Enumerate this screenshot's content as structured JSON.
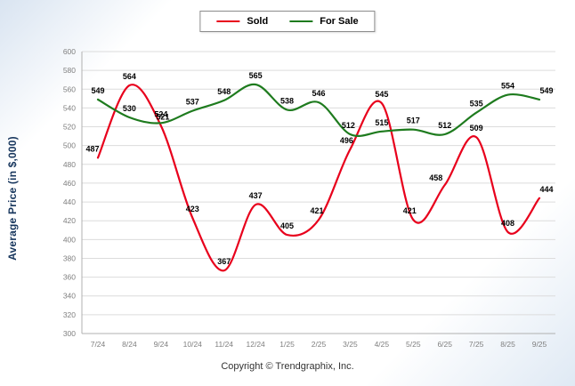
{
  "footer": {
    "copyright": "Copyright © Trendgraphix, Inc."
  },
  "chart_data": {
    "type": "line",
    "title": "",
    "categories": [
      "7/24",
      "8/24",
      "9/24",
      "10/24",
      "11/24",
      "12/24",
      "1/25",
      "2/25",
      "3/25",
      "4/25",
      "5/25",
      "6/25",
      "7/25",
      "8/25",
      "9/25"
    ],
    "series": [
      {
        "name": "Sold",
        "color": "#e8001c",
        "values": [
          487,
          564,
          521,
          423,
          367,
          437,
          405,
          421,
          496,
          545,
          421,
          458,
          509,
          408,
          444
        ]
      },
      {
        "name": "For Sale",
        "color": "#1e7b1e",
        "values": [
          549,
          530,
          524,
          537,
          548,
          565,
          538,
          546,
          512,
          515,
          517,
          512,
          535,
          554,
          549
        ]
      }
    ],
    "xlabel": "",
    "ylabel": "Average Price (in $,000)",
    "ylim": [
      300,
      600
    ],
    "ytick_step": 20,
    "grid": true,
    "legend_position": "top"
  }
}
